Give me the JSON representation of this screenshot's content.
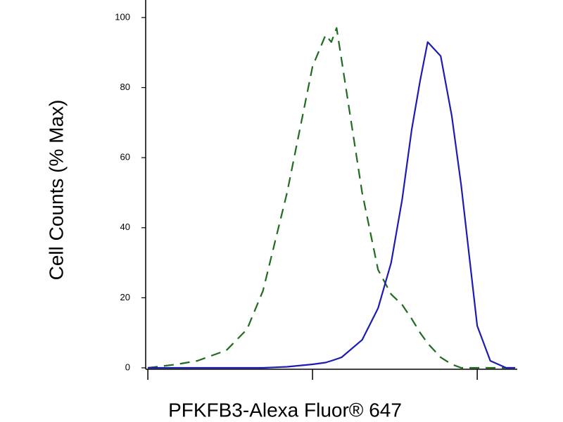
{
  "chart_data": {
    "type": "line",
    "xlabel": "PFKFB3-Alexa Fluor® 647",
    "ylabel": "Cell Counts (% Max)",
    "xlog": true,
    "xlim": [
      97,
      17500
    ],
    "xticks": [
      100,
      1000,
      10000
    ],
    "ylim": [
      0,
      105
    ],
    "yticks": [
      0,
      20,
      40,
      60,
      80,
      100
    ],
    "x": [
      100,
      150,
      200,
      300,
      400,
      500,
      700,
      1000,
      1200,
      1300,
      1400,
      1500,
      2000,
      2500,
      3000,
      3500,
      4000,
      4500,
      5000,
      6000,
      7000,
      8000,
      10000,
      12000,
      15000,
      17000
    ],
    "series": [
      {
        "color": "#1f6b1f",
        "dashed": true,
        "values": [
          0,
          1,
          2,
          5,
          11,
          22,
          50,
          86,
          95,
          93,
          97,
          88,
          50,
          28,
          21,
          18,
          14,
          10,
          7,
          3,
          1,
          0,
          0,
          0,
          0,
          0
        ]
      },
      {
        "color": "#1c1cb0",
        "dashed": false,
        "values": [
          0,
          0,
          0,
          0,
          0,
          0,
          0.3,
          1,
          1.5,
          2,
          2.5,
          3,
          8,
          17,
          30,
          48,
          68,
          82,
          93,
          89,
          72,
          52,
          12,
          2,
          0,
          0
        ]
      }
    ]
  }
}
